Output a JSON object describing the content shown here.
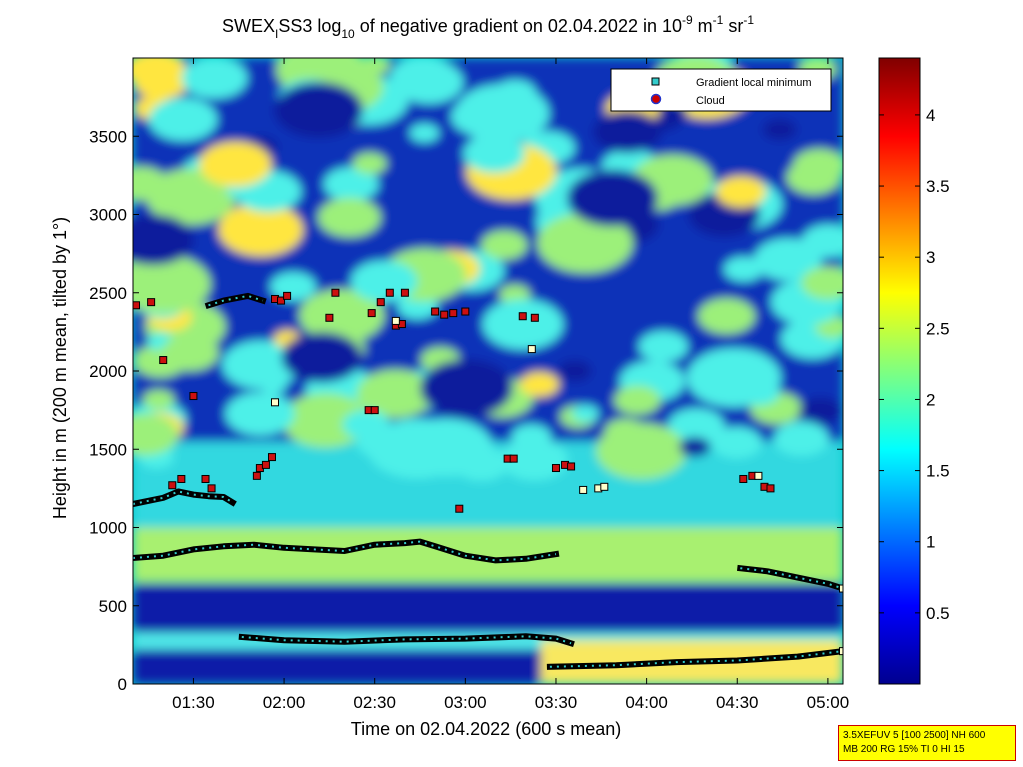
{
  "chart_data": {
    "type": "heatmap",
    "title": {
      "prefix": "SWEX",
      "prefix_sub": "I",
      "mid": "SS3 log",
      "log_sub": "10",
      "text": " of negative gradient on 02.04.2022 in 10",
      "exp1": "-9",
      "unit_m": " m",
      "exp2": "-1",
      "unit_sr": " sr",
      "exp3": "-1"
    },
    "xlabel": "Time on 02.04.2022 (600 s mean)",
    "ylabel": "Height in m (200 m mean, tilted by 1°)",
    "x_tick_labels": [
      "01:30",
      "02:00",
      "02:30",
      "03:00",
      "03:30",
      "04:00",
      "04:30",
      "05:00"
    ],
    "x_tick_minutes": [
      90,
      120,
      150,
      180,
      210,
      240,
      270,
      300
    ],
    "xlim_minutes": [
      70,
      305
    ],
    "y_ticks": [
      0,
      500,
      1000,
      1500,
      2000,
      2500,
      3000,
      3500
    ],
    "ylim": [
      0,
      4000
    ],
    "colorbar": {
      "ticks": [
        0.5,
        1,
        1.5,
        2,
        2.5,
        3,
        3.5,
        4
      ],
      "range": [
        0,
        4.4
      ],
      "colormap": "jet"
    },
    "legend": {
      "position": "top-right",
      "entries": [
        {
          "label": "Gradient local minimum",
          "marker": "square",
          "color": "#33cccc"
        },
        {
          "label": "Cloud",
          "marker": "circle",
          "color": "#cc0000"
        }
      ]
    },
    "series": [
      {
        "kind": "minimum-line",
        "points": [
          [
            70,
            805
          ],
          [
            80,
            820
          ],
          [
            90,
            860
          ],
          [
            100,
            880
          ],
          [
            110,
            890
          ],
          [
            120,
            870
          ],
          [
            130,
            860
          ],
          [
            140,
            850
          ],
          [
            150,
            890
          ],
          [
            160,
            900
          ],
          [
            165,
            910
          ],
          [
            170,
            880
          ],
          [
            180,
            820
          ],
          [
            190,
            790
          ],
          [
            200,
            800
          ],
          [
            210,
            830
          ]
        ]
      },
      {
        "kind": "minimum-line",
        "points": [
          [
            271,
            740
          ],
          [
            280,
            720
          ],
          [
            290,
            680
          ],
          [
            300,
            640
          ],
          [
            305,
            610
          ]
        ]
      },
      {
        "kind": "minimum-line",
        "points": [
          [
            106,
            300
          ],
          [
            120,
            280
          ],
          [
            140,
            270
          ],
          [
            160,
            285
          ],
          [
            180,
            290
          ],
          [
            200,
            305
          ],
          [
            210,
            290
          ],
          [
            215,
            260
          ]
        ]
      },
      {
        "kind": "minimum-line",
        "points": [
          [
            208,
            110
          ],
          [
            230,
            120
          ],
          [
            250,
            140
          ],
          [
            270,
            150
          ],
          [
            290,
            175
          ],
          [
            305,
            210
          ]
        ]
      },
      {
        "kind": "minimum-line",
        "points": [
          [
            70,
            1150
          ],
          [
            80,
            1190
          ],
          [
            85,
            1230
          ],
          [
            90,
            1210
          ],
          [
            95,
            1200
          ],
          [
            100,
            1195
          ],
          [
            103,
            1160
          ]
        ]
      },
      {
        "kind": "minimum-line",
        "points": [
          [
            95,
            2420
          ],
          [
            100,
            2450
          ],
          [
            108,
            2480
          ],
          [
            113,
            2450
          ]
        ]
      }
    ],
    "clouds": [
      [
        71,
        2420
      ],
      [
        76,
        2440
      ],
      [
        80,
        2070
      ],
      [
        83,
        1270
      ],
      [
        86,
        1310
      ],
      [
        90,
        1840
      ],
      [
        94,
        1310
      ],
      [
        96,
        1250
      ],
      [
        111,
        1330
      ],
      [
        112,
        1380
      ],
      [
        114,
        1400
      ],
      [
        116,
        1450
      ],
      [
        117,
        2460
      ],
      [
        119,
        2450
      ],
      [
        121,
        2480
      ],
      [
        135,
        2340
      ],
      [
        137,
        2500
      ],
      [
        148,
        1750
      ],
      [
        150,
        1750
      ],
      [
        149,
        2370
      ],
      [
        152,
        2440
      ],
      [
        155,
        2500
      ],
      [
        157,
        2290
      ],
      [
        159,
        2300
      ],
      [
        160,
        2500
      ],
      [
        170,
        2380
      ],
      [
        173,
        2360
      ],
      [
        176,
        2370
      ],
      [
        178,
        1120
      ],
      [
        180,
        2380
      ],
      [
        194,
        1440
      ],
      [
        196,
        1440
      ],
      [
        199,
        2350
      ],
      [
        203,
        2340
      ],
      [
        210,
        1380
      ],
      [
        213,
        1400
      ],
      [
        215,
        1390
      ],
      [
        272,
        1310
      ],
      [
        275,
        1330
      ],
      [
        279,
        1260
      ],
      [
        281,
        1250
      ]
    ],
    "open_minima": [
      [
        117,
        1800
      ],
      [
        157,
        2320
      ],
      [
        202,
        2140
      ],
      [
        219,
        1240
      ],
      [
        224,
        1250
      ],
      [
        226,
        1260
      ],
      [
        277,
        1330
      ],
      [
        305,
        210
      ],
      [
        305,
        610
      ]
    ]
  },
  "info_box": {
    "line1": "3.5XEFUV 5 [100 2500] NH 600",
    "line2": "MB 200 RG 15% TI 0 HI 15"
  }
}
